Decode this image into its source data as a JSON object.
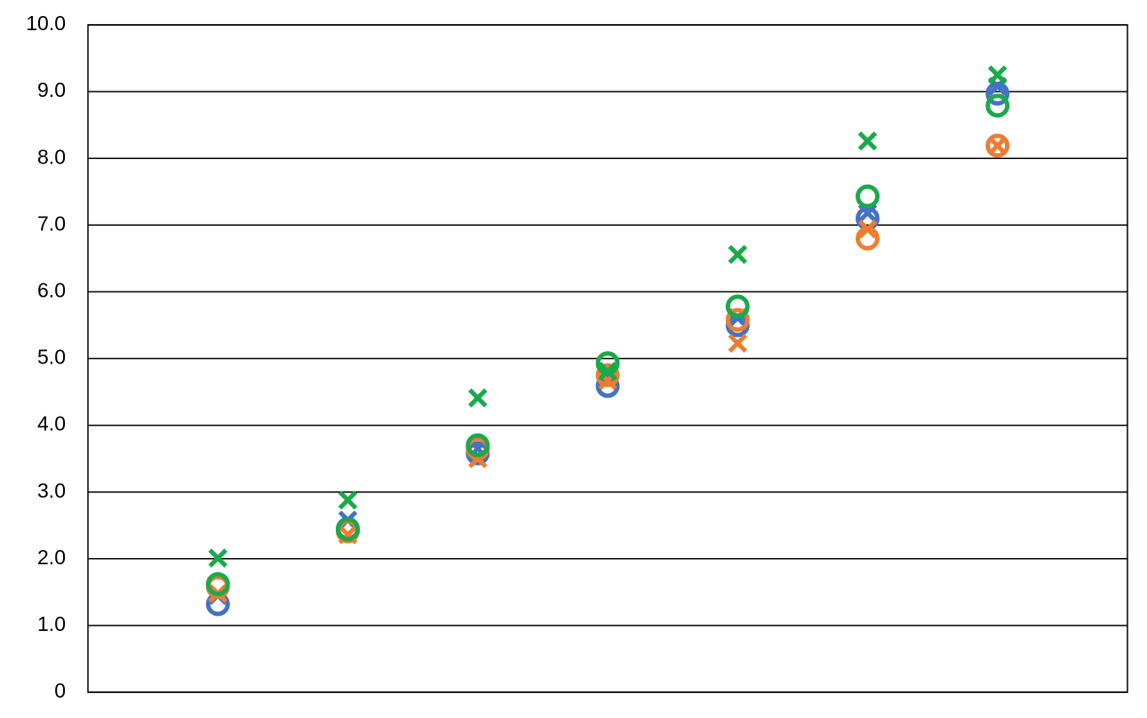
{
  "chart_data": {
    "type": "scatter",
    "x": [
      1,
      2,
      3,
      4,
      5,
      6,
      7
    ],
    "xlim": [
      0,
      8
    ],
    "ylim": [
      0,
      10
    ],
    "yticks": [
      0,
      {
        "value": 1,
        "label": "1.0"
      },
      {
        "value": 2,
        "label": "2.0"
      },
      {
        "value": 3,
        "label": "3.0"
      },
      {
        "value": 4,
        "label": "4.0"
      },
      {
        "value": 5,
        "label": "5.0"
      },
      {
        "value": 6,
        "label": "6.0"
      },
      {
        "value": 7,
        "label": "7.0"
      },
      {
        "value": 8,
        "label": "8.0"
      },
      {
        "value": 9,
        "label": "9.0"
      },
      {
        "value": 10,
        "label": "10.0"
      }
    ],
    "grid": true,
    "series": [
      {
        "color": "#4472c4",
        "marker": "circle",
        "values": [
          1.32,
          2.45,
          3.58,
          4.59,
          5.5,
          7.1,
          8.97
        ]
      },
      {
        "color": "#4472c4",
        "marker": "x",
        "values": [
          1.45,
          2.58,
          3.65,
          4.71,
          5.61,
          7.18,
          9.08
        ]
      },
      {
        "color": "#ed7d31",
        "marker": "circle",
        "values": [
          1.58,
          2.41,
          3.65,
          4.75,
          5.58,
          6.8,
          8.19
        ]
      },
      {
        "color": "#ed7d31",
        "marker": "x",
        "values": [
          1.48,
          2.36,
          3.5,
          4.67,
          5.23,
          6.94,
          8.19
        ]
      },
      {
        "color": "#1aaa4a",
        "marker": "circle",
        "values": [
          1.62,
          2.44,
          3.7,
          4.93,
          5.78,
          7.43,
          8.79
        ]
      },
      {
        "color": "#1aaa4a",
        "marker": "x",
        "values": [
          2.01,
          2.88,
          4.41,
          4.81,
          6.56,
          8.26,
          9.25
        ]
      }
    ]
  }
}
